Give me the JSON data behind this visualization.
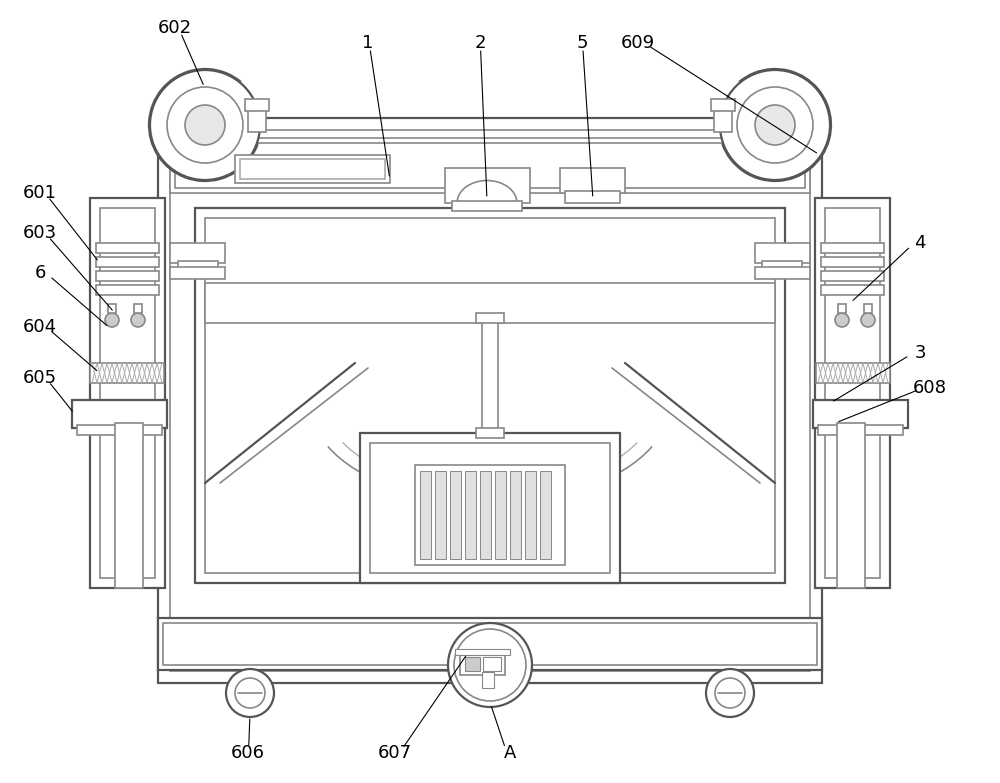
{
  "bg_color": "#ffffff",
  "line_color": "#888888",
  "line_color2": "#555555",
  "line_color3": "#aaaaaa"
}
